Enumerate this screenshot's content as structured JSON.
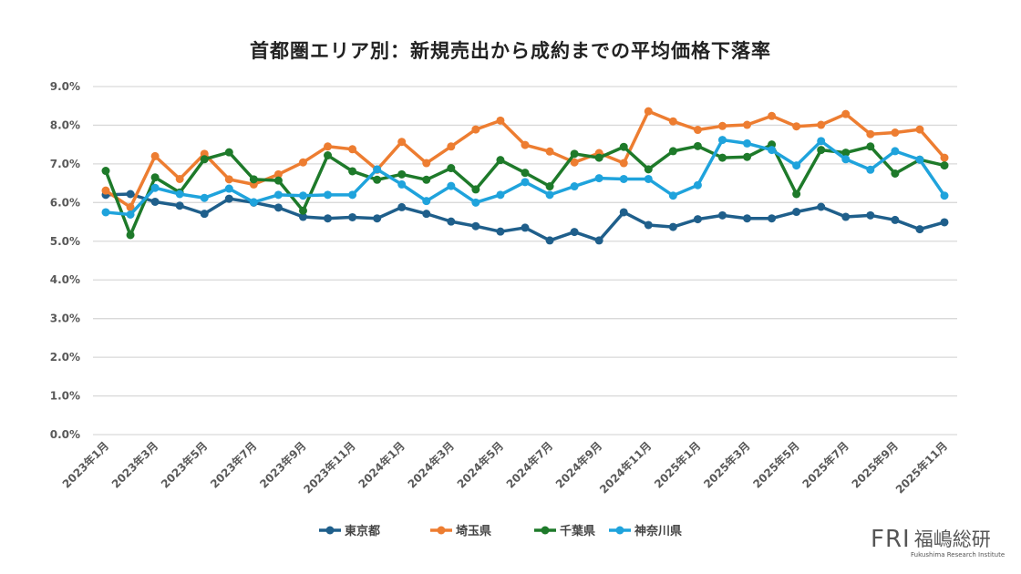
{
  "chart_data": {
    "type": "line",
    "title": "首都圏エリア別：新規売出から成約までの平均価格下落率",
    "xlabel": "",
    "ylabel": "",
    "ylim": [
      0,
      9
    ],
    "yticks": [
      "0.0%",
      "1.0%",
      "2.0%",
      "3.0%",
      "4.0%",
      "5.0%",
      "6.0%",
      "7.0%",
      "8.0%",
      "9.0%"
    ],
    "grid": true,
    "legend_position": "bottom",
    "x": [
      "2023年1月",
      "2023年2月",
      "2023年3月",
      "2023年4月",
      "2023年5月",
      "2023年6月",
      "2023年7月",
      "2023年8月",
      "2023年9月",
      "2023年10月",
      "2023年11月",
      "2023年12月",
      "2024年1月",
      "2024年2月",
      "2024年3月",
      "2024年4月",
      "2024年5月",
      "2024年6月",
      "2024年7月",
      "2024年8月",
      "2024年9月",
      "2024年10月",
      "2024年11月",
      "2024年12月",
      "2025年1月",
      "2025年2月",
      "2025年3月",
      "2025年4月",
      "2025年5月",
      "2025年6月",
      "2025年7月",
      "2025年8月",
      "2025年9月",
      "2025年10月",
      "2025年11月"
    ],
    "xtick_labels": [
      "2023年1月",
      "2023年3月",
      "2023年5月",
      "2023年7月",
      "2023年9月",
      "2023年11月",
      "2024年1月",
      "2024年3月",
      "2024年5月",
      "2024年7月",
      "2024年9月",
      "2024年11月",
      "2025年1月",
      "2025年3月",
      "2025年5月",
      "2025年7月",
      "2025年9月",
      "2025年11月"
    ],
    "series": [
      {
        "name": "東京都",
        "color": "#1f5f8b",
        "values": [
          6.2,
          6.22,
          6.02,
          5.92,
          5.71,
          6.1,
          6.0,
          5.87,
          5.63,
          5.59,
          5.62,
          5.59,
          5.88,
          5.71,
          5.51,
          5.39,
          5.25,
          5.35,
          5.02,
          5.24,
          5.02,
          5.75,
          5.42,
          5.37,
          5.57,
          5.67,
          5.59,
          5.59,
          5.76,
          5.89,
          5.63,
          5.67,
          5.55,
          5.31,
          5.49
        ]
      },
      {
        "name": "埼玉県",
        "color": "#ed7d31",
        "values": [
          6.31,
          5.88,
          7.2,
          6.61,
          7.26,
          6.6,
          6.47,
          6.73,
          7.04,
          7.45,
          7.38,
          6.85,
          7.57,
          7.02,
          7.45,
          7.89,
          8.12,
          7.49,
          7.32,
          7.04,
          7.28,
          7.02,
          8.36,
          8.1,
          7.88,
          7.98,
          8.01,
          8.24,
          7.97,
          8.01,
          8.29,
          7.77,
          7.81,
          7.89,
          7.16
        ]
      },
      {
        "name": "千葉県",
        "color": "#1e7a2a",
        "values": [
          6.82,
          5.16,
          6.65,
          6.26,
          7.12,
          7.3,
          6.6,
          6.57,
          5.79,
          7.22,
          6.81,
          6.59,
          6.73,
          6.59,
          6.89,
          6.34,
          7.1,
          6.77,
          6.42,
          7.26,
          7.16,
          7.44,
          6.86,
          7.33,
          7.46,
          7.16,
          7.18,
          7.5,
          6.22,
          7.36,
          7.29,
          7.45,
          6.75,
          7.11,
          6.96
        ]
      },
      {
        "name": "神奈川県",
        "color": "#1fa3dc",
        "values": [
          5.75,
          5.69,
          6.38,
          6.22,
          6.12,
          6.36,
          6.01,
          6.2,
          6.18,
          6.2,
          6.2,
          6.86,
          6.47,
          6.04,
          6.43,
          6.0,
          6.2,
          6.53,
          6.2,
          6.42,
          6.63,
          6.61,
          6.61,
          6.18,
          6.45,
          7.62,
          7.53,
          7.36,
          6.96,
          7.59,
          7.12,
          6.85,
          7.33,
          7.11,
          6.18
        ]
      }
    ]
  },
  "logo": {
    "mark": "FRI",
    "name": "福嶋総研",
    "subtitle": "Fukushima Research Institute"
  }
}
